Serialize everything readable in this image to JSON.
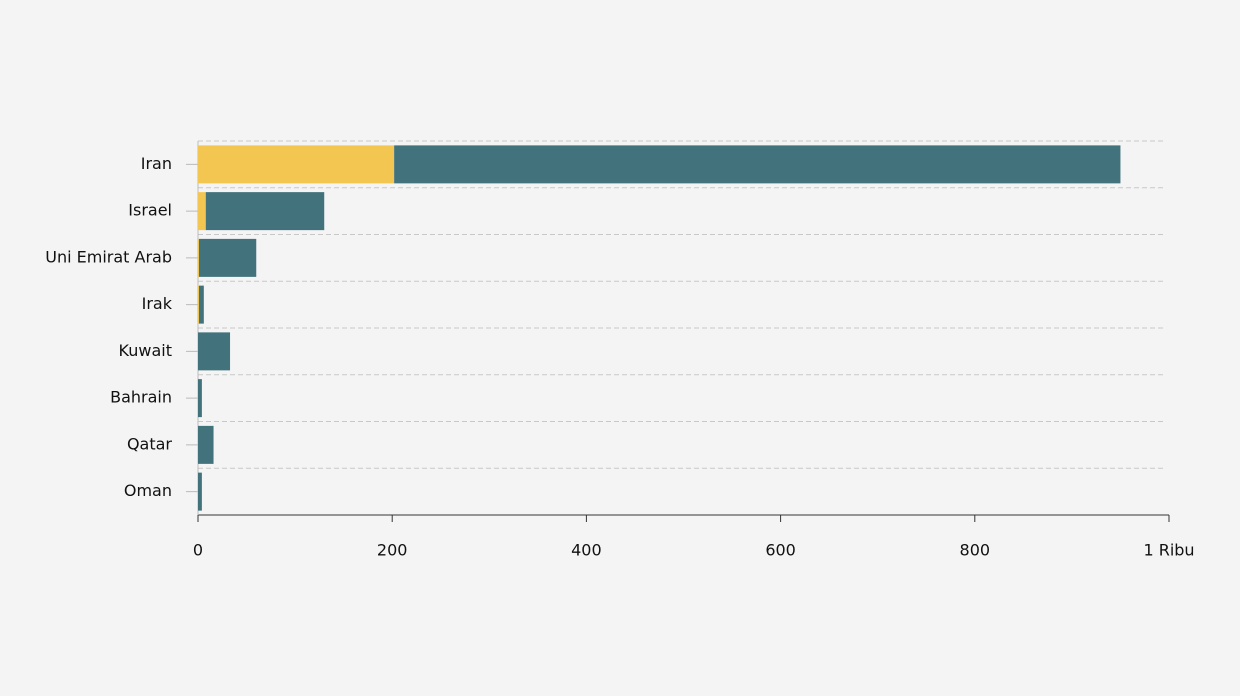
{
  "chart_data": {
    "type": "bar",
    "orientation": "horizontal",
    "stacked": true,
    "categories": [
      "Iran",
      "Israel",
      "Uni Emirat Arab",
      "Irak",
      "Kuwait",
      "Bahrain",
      "Qatar",
      "Oman"
    ],
    "series": [
      {
        "color": "#f2c651",
        "values": [
          202,
          8,
          1,
          1,
          0,
          0,
          0,
          0
        ]
      },
      {
        "color": "#42737c",
        "values": [
          748,
          122,
          59,
          5,
          33,
          4,
          16,
          4
        ]
      }
    ],
    "xlim": [
      0,
      1000
    ],
    "xticks": [
      0,
      200,
      400,
      600,
      800,
      {
        "value": 1000,
        "label": "1 Ribu"
      }
    ]
  }
}
